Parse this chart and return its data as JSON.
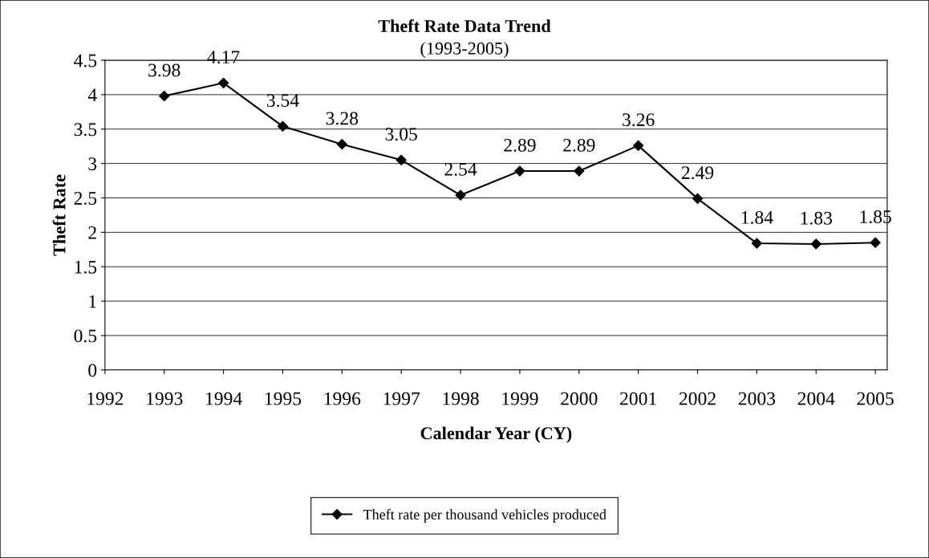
{
  "chart_data": {
    "type": "line",
    "title": "Theft Rate Data Trend",
    "subtitle": "(1993-2005)",
    "xlabel": "Calendar Year (CY)",
    "ylabel": "Theft Rate",
    "x": [
      1993,
      1994,
      1995,
      1996,
      1997,
      1998,
      1999,
      2000,
      2001,
      2002,
      2003,
      2004,
      2005
    ],
    "series": [
      {
        "name": "Theft rate per thousand vehicles produced",
        "color": "#000000",
        "values": [
          3.98,
          4.17,
          3.54,
          3.28,
          3.05,
          2.54,
          2.89,
          2.89,
          3.26,
          2.49,
          1.84,
          1.83,
          1.85
        ]
      }
    ],
    "xlim": [
      1992,
      2005.2
    ],
    "xticks": [
      1992,
      1993,
      1994,
      1995,
      1996,
      1997,
      1998,
      1999,
      2000,
      2001,
      2002,
      2003,
      2004,
      2005
    ],
    "ylim": [
      0,
      4.5
    ],
    "yticks": [
      0,
      0.5,
      1,
      1.5,
      2,
      2.5,
      3,
      3.5,
      4,
      4.5
    ],
    "grid": "y",
    "legend": "bottom",
    "marker": "diamond",
    "line_style": "solid",
    "data_labels": true
  }
}
